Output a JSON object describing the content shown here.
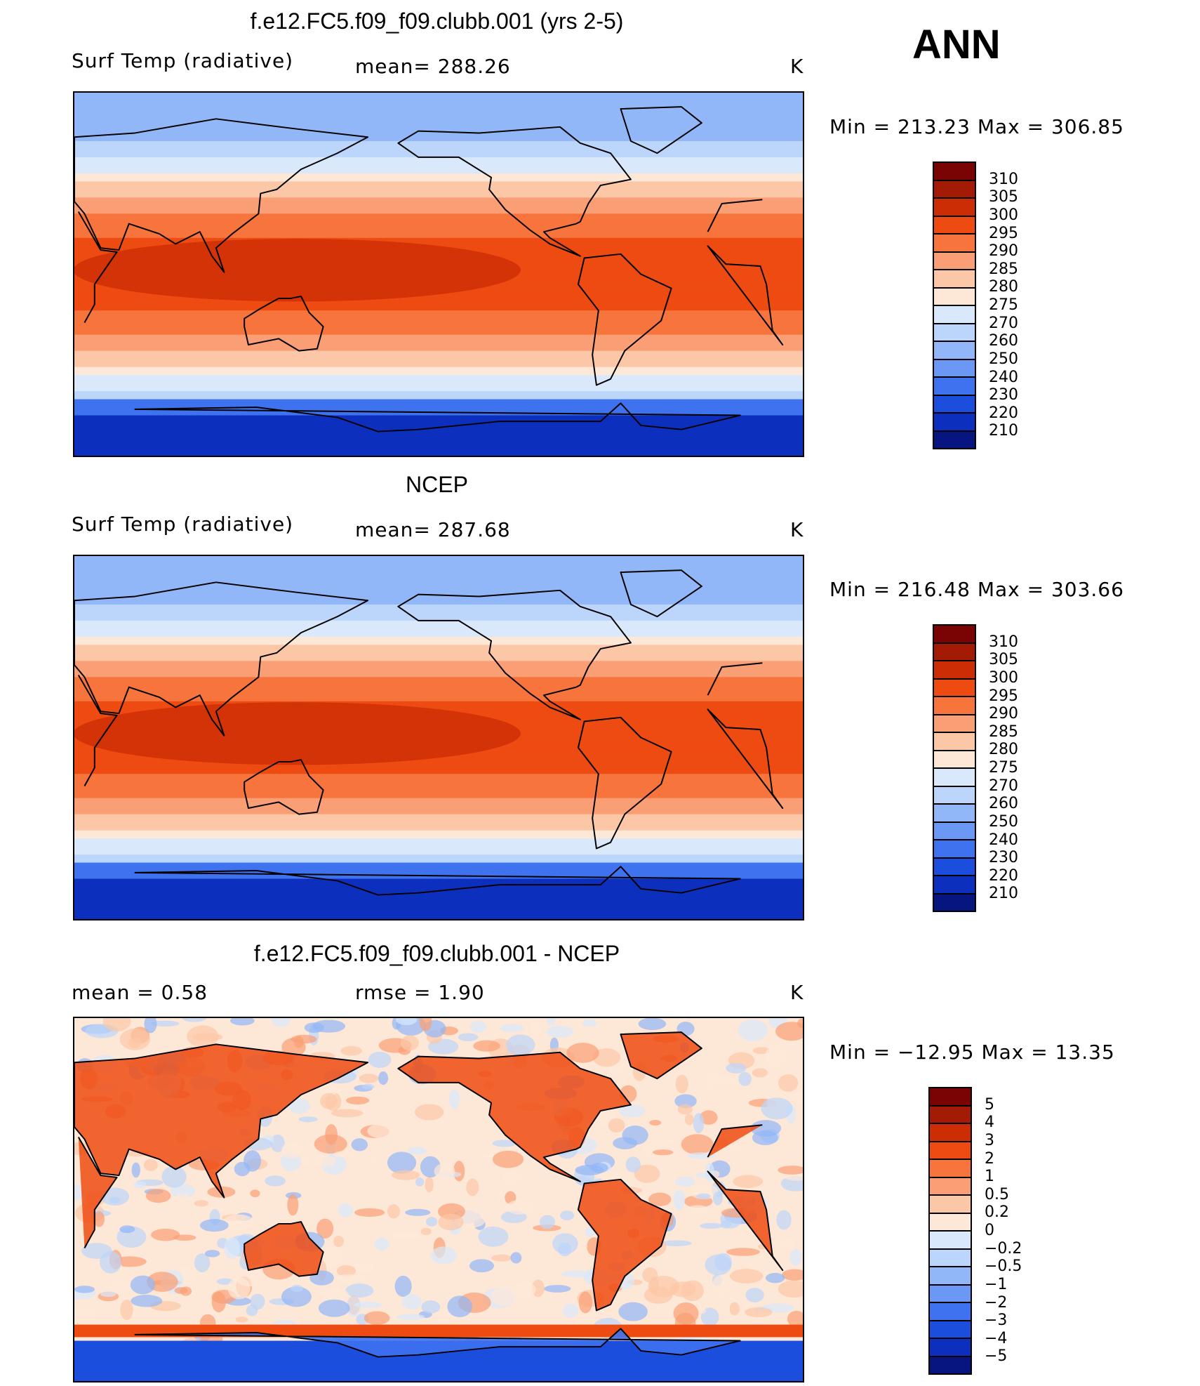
{
  "season": "ANN",
  "panels": [
    {
      "id": "model",
      "title": "f.e12.FC5.f09_f09.clubb.001 (yrs 2-5)",
      "left_label": "Surf Temp (radiative)",
      "mid_label": "mean= 288.26",
      "units": "K",
      "minmax": "Min = 213.23 Max = 306.85",
      "field": "abs"
    },
    {
      "id": "obs",
      "title": "NCEP",
      "left_label": "Surf Temp (radiative)",
      "mid_label": "mean= 287.68",
      "units": "K",
      "minmax": "Min = 216.48 Max = 303.66",
      "field": "abs"
    },
    {
      "id": "diff",
      "title": "f.e12.FC5.f09_f09.clubb.001 - NCEP",
      "left_label": "mean =    0.58",
      "mid_label": "rmse =    1.90",
      "units": "K",
      "minmax": "Min = −12.95 Max =  13.35",
      "field": "diff"
    }
  ],
  "colorbar_abs": {
    "labels": [
      "310",
      "305",
      "300",
      "295",
      "290",
      "285",
      "280",
      "275",
      "270",
      "260",
      "250",
      "240",
      "230",
      "220",
      "210"
    ],
    "colors": [
      "#7a0403",
      "#a31a05",
      "#cc2d04",
      "#ee4b12",
      "#f7743c",
      "#fa9f75",
      "#fcc7a7",
      "#fde8d8",
      "#d9e8fb",
      "#bcd6fb",
      "#91b7f8",
      "#6a98f4",
      "#3f72ef",
      "#1c4ede",
      "#0c2fbd",
      "#061580"
    ]
  },
  "colorbar_diff": {
    "labels": [
      "5",
      "4",
      "3",
      "2",
      "1",
      "0.5",
      "0.2",
      "0",
      "−0.2",
      "−0.5",
      "−1",
      "−2",
      "−3",
      "−4",
      "−5"
    ],
    "colors": [
      "#7a0403",
      "#a31a05",
      "#cc2d04",
      "#ee4b12",
      "#f7743c",
      "#fa9f75",
      "#fcc7a7",
      "#fde8d8",
      "#d9e8fb",
      "#bcd6fb",
      "#91b7f8",
      "#6a98f4",
      "#3f72ef",
      "#1c4ede",
      "#0c2fbd",
      "#061580"
    ]
  }
}
